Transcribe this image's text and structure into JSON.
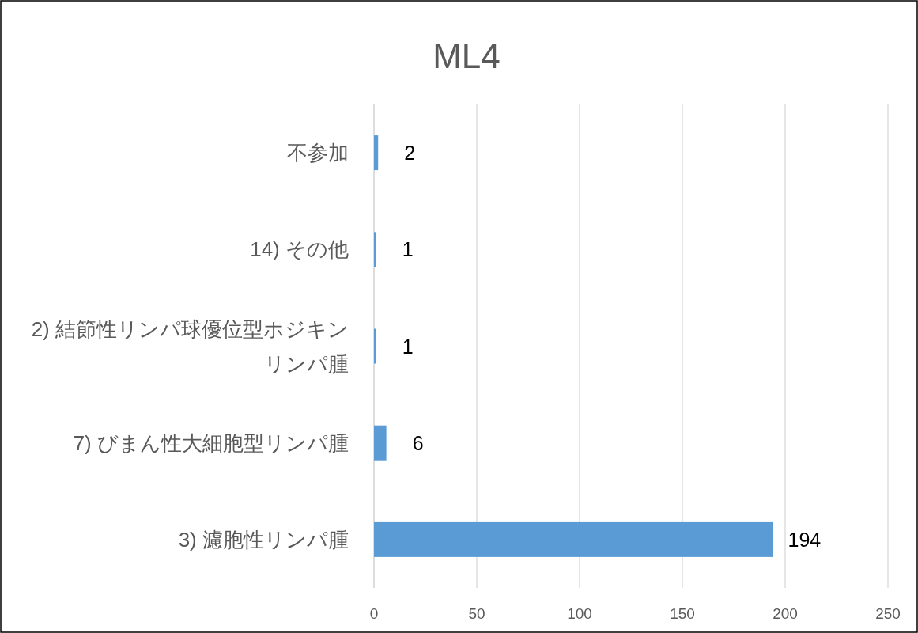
{
  "chart_data": {
    "type": "bar",
    "orientation": "horizontal",
    "title": "ML4",
    "categories": [
      "不参加",
      "14) その他",
      "2) 結節性リンパ球優位型ホジキンリンパ腫",
      "7) びまん性大細胞型リンパ腫",
      "3) 濾胞性リンパ腫"
    ],
    "values": [
      2,
      1,
      1,
      6,
      194
    ],
    "color": "#5b9bd5",
    "xlim": [
      0,
      250
    ],
    "xticks": [
      0,
      50,
      100,
      150,
      200,
      250
    ],
    "grid": "x",
    "data_labels": true
  }
}
